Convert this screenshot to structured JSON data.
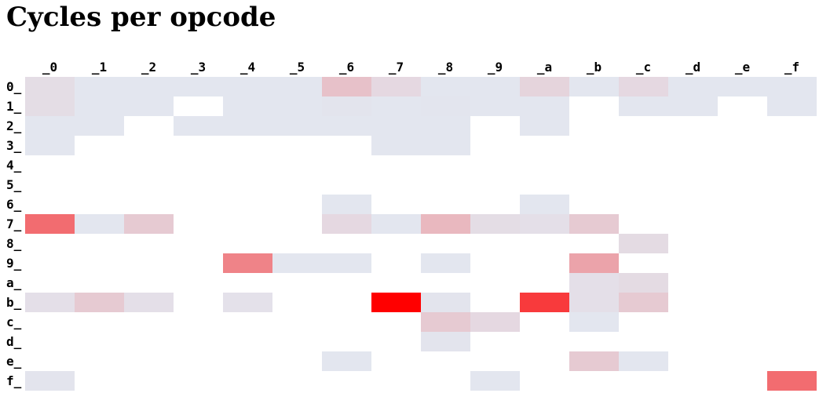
{
  "chart_data": {
    "type": "heatmap",
    "title": "Cycles per opcode",
    "columns": [
      "_0",
      "_1",
      "_2",
      "_3",
      "_4",
      "_5",
      "_6",
      "_7",
      "_8",
      "_9",
      "_a",
      "_b",
      "_c",
      "_d",
      "_e",
      "_f"
    ],
    "rows": [
      "0_",
      "1_",
      "2_",
      "3_",
      "4_",
      "5_",
      "6_",
      "7_",
      "8_",
      "9_",
      "a_",
      "b_",
      "c_",
      "d_",
      "e_",
      "f_"
    ],
    "color_low": "#e3e6ef",
    "color_high": "#ff0000",
    "value_note": "relative intensity 0-1, null = no data",
    "cells": [
      [
        0.04,
        0,
        0,
        0,
        0,
        0,
        0.16,
        0.06,
        0,
        0,
        0.08,
        0,
        0.06,
        0,
        0,
        0
      ],
      [
        0.04,
        0,
        0,
        null,
        0,
        0,
        0.01,
        0,
        0.005,
        0,
        0,
        null,
        0,
        0,
        null,
        0
      ],
      [
        0,
        0,
        null,
        0,
        0,
        0,
        0,
        0,
        0,
        null,
        0,
        null,
        null,
        null,
        null,
        null
      ],
      [
        0,
        null,
        null,
        null,
        null,
        null,
        null,
        0,
        0,
        null,
        null,
        null,
        null,
        null,
        null,
        null
      ],
      [
        null,
        null,
        null,
        null,
        null,
        null,
        null,
        null,
        null,
        null,
        null,
        null,
        null,
        null,
        null,
        null
      ],
      [
        null,
        null,
        null,
        null,
        null,
        null,
        null,
        null,
        null,
        null,
        null,
        null,
        null,
        null,
        null,
        null
      ],
      [
        null,
        null,
        null,
        null,
        null,
        null,
        0,
        null,
        null,
        null,
        0,
        null,
        null,
        null,
        null,
        null
      ],
      [
        0.53,
        0,
        0.12,
        null,
        null,
        null,
        0.06,
        0,
        0.2,
        0.04,
        0.03,
        0.12,
        null,
        null,
        null,
        null
      ],
      [
        null,
        null,
        null,
        null,
        null,
        null,
        null,
        null,
        null,
        null,
        null,
        null,
        0.05,
        null,
        null,
        null
      ],
      [
        null,
        null,
        null,
        null,
        0.43,
        0,
        0,
        null,
        0,
        null,
        null,
        0.29,
        null,
        null,
        null,
        null
      ],
      [
        null,
        null,
        null,
        null,
        null,
        null,
        null,
        null,
        null,
        null,
        null,
        0.03,
        0.05,
        null,
        null,
        null
      ],
      [
        0.03,
        0.12,
        0.03,
        null,
        0.02,
        null,
        null,
        1.0,
        0.01,
        null,
        0.75,
        0.03,
        0.12,
        null,
        null,
        null
      ],
      [
        null,
        null,
        null,
        null,
        null,
        null,
        null,
        null,
        0.12,
        0.06,
        null,
        0,
        null,
        null,
        null,
        null
      ],
      [
        null,
        null,
        null,
        null,
        null,
        null,
        null,
        null,
        0.01,
        null,
        null,
        null,
        null,
        null,
        null,
        null
      ],
      [
        null,
        null,
        null,
        null,
        null,
        null,
        0,
        null,
        null,
        null,
        null,
        0.12,
        0,
        null,
        null,
        null
      ],
      [
        0.01,
        null,
        null,
        null,
        null,
        null,
        null,
        null,
        null,
        0,
        null,
        null,
        null,
        null,
        null,
        0.53
      ]
    ]
  }
}
